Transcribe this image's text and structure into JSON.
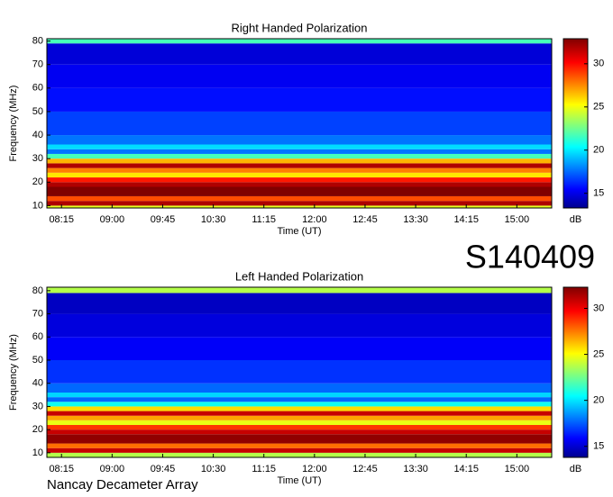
{
  "chart_data": [
    {
      "type": "heatmap",
      "title": "Right Handed Polarization",
      "xlabel": "Time (UT)",
      "ylabel": "Frequency (MHz)",
      "xlim": [
        482,
        931
      ],
      "xticks": [
        {
          "value": 495,
          "label": "08:15"
        },
        {
          "value": 540,
          "label": "09:00"
        },
        {
          "value": 585,
          "label": "09:45"
        },
        {
          "value": 630,
          "label": "10:30"
        },
        {
          "value": 675,
          "label": "11:15"
        },
        {
          "value": 720,
          "label": "12:00"
        },
        {
          "value": 765,
          "label": "12:45"
        },
        {
          "value": 810,
          "label": "13:30"
        },
        {
          "value": 855,
          "label": "14:15"
        },
        {
          "value": 900,
          "label": "15:00"
        }
      ],
      "ylim": [
        9,
        81
      ],
      "yticks": [
        10,
        20,
        30,
        40,
        50,
        60,
        70,
        80
      ],
      "bands": [
        9,
        10,
        12,
        14,
        18,
        20,
        22,
        24,
        26,
        28,
        30,
        32,
        34,
        36,
        40,
        50,
        60,
        70,
        79,
        81
      ],
      "values": [
        25,
        32,
        29,
        33,
        32,
        30,
        26,
        28,
        32,
        27,
        22,
        18,
        20,
        18,
        17,
        16,
        15.5,
        15,
        22
      ],
      "clim": [
        13.3,
        32.9
      ],
      "cticks": [
        15,
        20,
        25,
        30
      ],
      "colorbar_label": "dB"
    },
    {
      "type": "heatmap",
      "title": "Left Handed Polarization",
      "xlabel": "Time (UT)",
      "ylabel": "Frequency (MHz)",
      "xlim": [
        482,
        931
      ],
      "xticks": [
        {
          "value": 495,
          "label": "08:15"
        },
        {
          "value": 540,
          "label": "09:00"
        },
        {
          "value": 585,
          "label": "09:45"
        },
        {
          "value": 630,
          "label": "10:30"
        },
        {
          "value": 675,
          "label": "11:15"
        },
        {
          "value": 720,
          "label": "12:00"
        },
        {
          "value": 765,
          "label": "12:45"
        },
        {
          "value": 810,
          "label": "13:30"
        },
        {
          "value": 855,
          "label": "14:15"
        },
        {
          "value": 900,
          "label": "15:00"
        }
      ],
      "ylim": [
        8,
        81.5
      ],
      "yticks": [
        10,
        20,
        30,
        40,
        50,
        60,
        70,
        80
      ],
      "bands": [
        8,
        10,
        12,
        14,
        18,
        20,
        22,
        24,
        26,
        28,
        30,
        32,
        34,
        36,
        40,
        50,
        60,
        70,
        79,
        81.5
      ],
      "values": [
        24,
        31,
        28,
        32,
        31,
        29,
        25,
        27,
        31,
        26,
        21,
        18,
        20,
        18,
        17,
        16,
        15.5,
        15,
        24
      ],
      "clim": [
        13.8,
        32.3
      ],
      "cticks": [
        15,
        20,
        25,
        30
      ],
      "colorbar_label": "dB"
    }
  ],
  "station": "S140409",
  "footer": "Nancay Decameter Array"
}
